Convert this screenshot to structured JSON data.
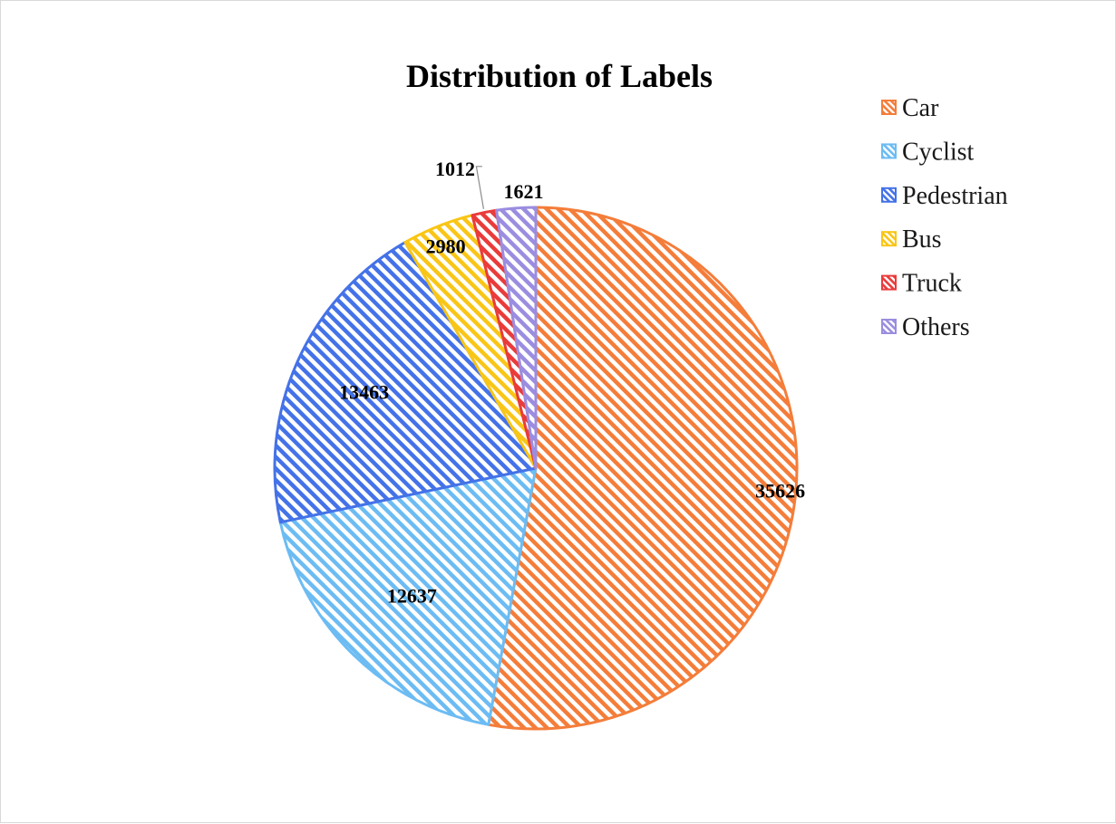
{
  "chart_data": {
    "type": "pie",
    "title": "Distribution of Labels",
    "categories": [
      "Car",
      "Cyclist",
      "Pedestrian",
      "Bus",
      "Truck",
      "Others"
    ],
    "values": [
      35626,
      12637,
      13463,
      2980,
      1012,
      1621
    ],
    "colors": [
      "#f47d3a",
      "#6cbcf3",
      "#4472e8",
      "#f9c617",
      "#ea3b3b",
      "#9b8de0"
    ],
    "fill_pattern": "diagonal-hatch",
    "start_angle_deg": 0,
    "direction": "clockwise",
    "data_labels": true,
    "legend_position": "right"
  }
}
